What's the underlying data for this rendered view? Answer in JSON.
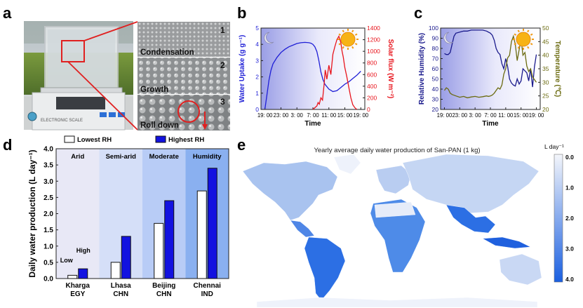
{
  "panels": {
    "a": {
      "label": "a",
      "scale_text": "ELECTRONIC SCALE",
      "steps": [
        {
          "num": "1",
          "label": "Condensation"
        },
        {
          "num": "2",
          "label": "Growth"
        },
        {
          "num": "3",
          "label": "Roll down"
        }
      ]
    },
    "b": {
      "label": "b"
    },
    "c": {
      "label": "c"
    },
    "d": {
      "label": "d"
    },
    "e": {
      "label": "e"
    }
  },
  "chart_data": [
    {
      "id": "b",
      "type": "line",
      "xlabel": "Time",
      "x_ticks": [
        "19: 00",
        "23: 00",
        "3: 00",
        "7: 00",
        "11: 00",
        "15: 00",
        "19: 00"
      ],
      "ylabel_left": "Water Uptake (g g⁻¹)",
      "ylabel_right": "Solar flux (W m⁻²)",
      "ylim_left": [
        0,
        5
      ],
      "ylim_right": [
        0,
        1400
      ],
      "yticks_left": [
        "0",
        "1",
        "2",
        "3",
        "4",
        "5"
      ],
      "yticks_right": [
        "0",
        "200",
        "400",
        "600",
        "800",
        "1000",
        "1200",
        "1400"
      ],
      "series": [
        {
          "name": "Water uptake",
          "axis": "left",
          "color": "#1f1fd6",
          "x": [
            0,
            0.5,
            1,
            1.5,
            2,
            3,
            4,
            5,
            6,
            7,
            8,
            9,
            10,
            11,
            11.5,
            12,
            12.5,
            13,
            13.5,
            14,
            14.5,
            15,
            16,
            17,
            18,
            19,
            20,
            21,
            22,
            23,
            24
          ],
          "y": [
            0.05,
            0.9,
            1.8,
            2.4,
            2.8,
            3.2,
            3.5,
            3.7,
            3.85,
            3.95,
            4.05,
            4.1,
            4.12,
            4.1,
            4.07,
            4.0,
            3.85,
            3.55,
            3.0,
            2.3,
            1.85,
            1.55,
            1.25,
            1.1,
            1.15,
            1.35,
            1.55,
            1.7,
            1.9,
            2.1,
            2.35
          ]
        },
        {
          "name": "Solar flux",
          "axis": "right",
          "color": "#e8141c",
          "x": [
            12,
            12.5,
            13,
            13.3,
            13.6,
            14,
            14.4,
            14.8,
            15.1,
            15.5,
            16,
            16.5,
            17,
            17.5,
            18,
            18.5,
            19,
            19.3,
            19.6,
            20,
            20.5,
            21,
            21.5,
            22,
            22.5,
            23
          ],
          "y": [
            0,
            30,
            60,
            120,
            90,
            200,
            160,
            420,
            680,
            520,
            760,
            600,
            950,
            1080,
            1200,
            1260,
            1150,
            1000,
            900,
            720,
            560,
            380,
            200,
            80,
            30,
            0
          ]
        }
      ]
    },
    {
      "id": "c",
      "type": "line",
      "xlabel": "Time",
      "x_ticks": [
        "19: 00",
        "23: 00",
        "3: 00",
        "7: 00",
        "11: 00",
        "15: 00",
        "19: 00"
      ],
      "ylabel_left": "Relative Humidity (%)",
      "ylabel_right": "Temperature (℃)",
      "ylim_left": [
        20,
        100
      ],
      "ylim_right": [
        20,
        50
      ],
      "yticks_left": [
        "20",
        "30",
        "40",
        "50",
        "60",
        "70",
        "80",
        "90",
        "100"
      ],
      "yticks_right": [
        "20",
        "25",
        "30",
        "35",
        "40",
        "45",
        "50"
      ],
      "series": [
        {
          "name": "Relative humidity",
          "axis": "left",
          "color": "#1a1a8c",
          "x": [
            0,
            0.5,
            1,
            1.5,
            2,
            2.5,
            3,
            4,
            5,
            6,
            7,
            8,
            9,
            10,
            11,
            12,
            12.5,
            13,
            13.5,
            14,
            14.5,
            15,
            15.5,
            16,
            16.5,
            17,
            17.5,
            18,
            18.5,
            19,
            19.5,
            20,
            20.5,
            21,
            21.5,
            22,
            22.5,
            23,
            23.5,
            24
          ],
          "y": [
            75,
            74,
            74,
            76,
            84,
            92,
            95,
            96,
            97,
            97,
            98,
            98,
            98,
            98,
            97,
            95,
            93,
            88,
            80,
            76,
            74,
            65,
            60,
            70,
            62,
            50,
            46,
            44,
            43,
            50,
            45,
            48,
            60,
            58,
            56,
            48,
            60,
            42,
            62,
            74
          ]
        },
        {
          "name": "Temperature",
          "axis": "right",
          "color": "#6b6b10",
          "x": [
            0,
            0.5,
            1,
            1.5,
            2,
            3,
            4,
            5,
            6,
            7,
            8,
            9,
            10,
            11,
            11.5,
            12,
            12.5,
            13,
            13.5,
            14,
            14.5,
            15,
            15.5,
            16,
            16.5,
            17,
            17.5,
            18,
            18.5,
            19,
            19.5,
            20,
            20.5,
            21,
            21.5,
            22,
            22.5,
            23,
            23.5,
            24
          ],
          "y": [
            27,
            28,
            27.5,
            26,
            25.5,
            25,
            24.5,
            24.8,
            24.3,
            24.6,
            24.8,
            24.5,
            24.7,
            25,
            24.8,
            25,
            25.3,
            26,
            27,
            28,
            27.5,
            29,
            33,
            35,
            39,
            40,
            45,
            47,
            44,
            38,
            42,
            46,
            40,
            41,
            36,
            34,
            35,
            32,
            31,
            30
          ]
        }
      ]
    },
    {
      "id": "d",
      "type": "bar",
      "title": "",
      "xlabel": "",
      "ylabel": "Daily water production (L day⁻¹)",
      "ylim": [
        0,
        4.0
      ],
      "yticks": [
        "0.0",
        "0.5",
        "1.0",
        "1.5",
        "2.0",
        "2.5",
        "3.0",
        "3.5",
        "4.0"
      ],
      "categories": [
        "Kharga\nEGY",
        "Lhasa\nCHN",
        "Beijing\nCHN",
        "Chennai\nIND"
      ],
      "category_lines": [
        [
          "Kharga",
          "EGY"
        ],
        [
          "Lhasa",
          "CHN"
        ],
        [
          "Beijing",
          "CHN"
        ],
        [
          "Chennai",
          "IND"
        ]
      ],
      "climates": [
        "Arid",
        "Semi-arid",
        "Moderate",
        "Humidity"
      ],
      "series": [
        {
          "name": "Lowest RH",
          "color": "#ffffff",
          "values": [
            0.1,
            0.5,
            1.7,
            2.7
          ]
        },
        {
          "name": "Highest RH",
          "color": "#1212e0",
          "values": [
            0.3,
            1.3,
            2.4,
            3.4
          ]
        }
      ],
      "annotations": [
        "Low",
        "High"
      ],
      "legend_location": "top"
    },
    {
      "id": "e",
      "type": "heatmap",
      "title": "Yearly average daily water production of San-PAN (1 kg)",
      "colorbar_label": "L day⁻¹",
      "colorbar_ticks": [
        "0.0",
        "1.0",
        "2.0",
        "3.0",
        "4.0"
      ],
      "colorbar_range": [
        0,
        4
      ],
      "colormap": [
        "#f4f6fb",
        "#1a5fe0"
      ]
    }
  ]
}
